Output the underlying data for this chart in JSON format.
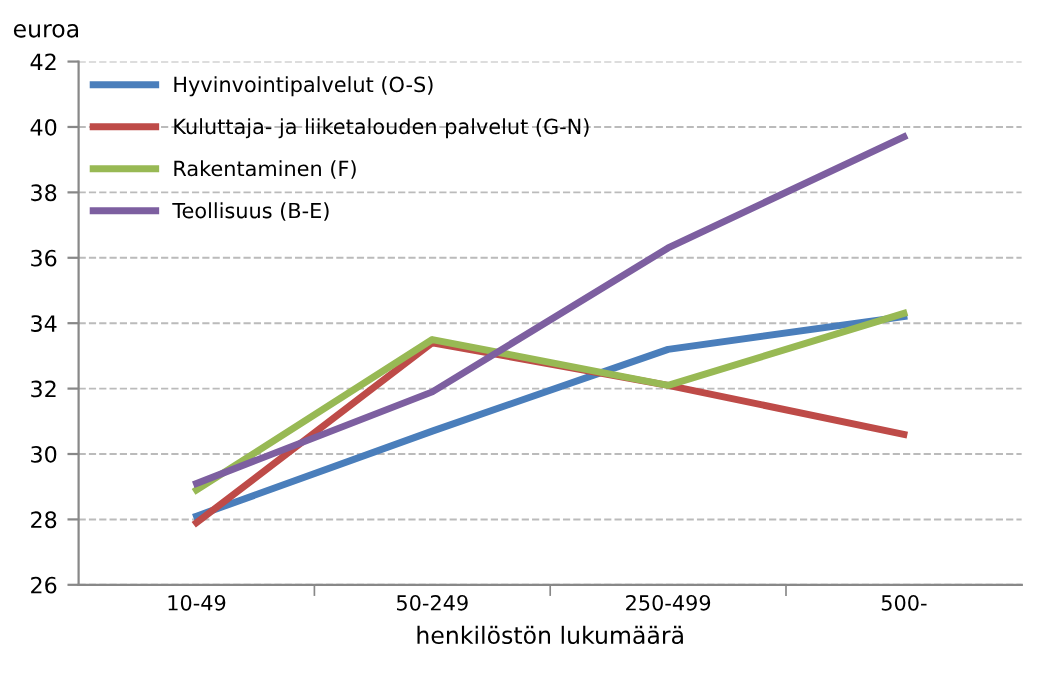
{
  "chart_data": {
    "type": "line",
    "ylabel": "euroa",
    "xlabel": "henkilöstön lukumäärä",
    "categories": [
      "10-49",
      "50-249",
      "250-499",
      "500-"
    ],
    "series": [
      {
        "name": "Hyvinvointipalvelut (O-S)",
        "color": "#4a7ebb",
        "values": [
          28.1,
          30.7,
          33.2,
          34.2
        ]
      },
      {
        "name": "Kuluttaja- ja liiketalouden palvelut (G-N)",
        "color": "#be4b48",
        "values": [
          27.9,
          33.4,
          32.1,
          30.6
        ]
      },
      {
        "name": "Rakentaminen (F)",
        "color": "#98b954",
        "values": [
          28.9,
          33.5,
          32.1,
          34.3
        ]
      },
      {
        "name": "Teollisuus (B-E)",
        "color": "#7d5fa0",
        "values": [
          29.1,
          31.9,
          36.3,
          39.7
        ]
      }
    ],
    "ylim": [
      26,
      42
    ],
    "yticks": [
      26,
      28,
      30,
      32,
      34,
      36,
      38,
      40,
      42
    ],
    "grid": "y",
    "legend": "top left",
    "marker": "none",
    "line_style": "solid"
  }
}
